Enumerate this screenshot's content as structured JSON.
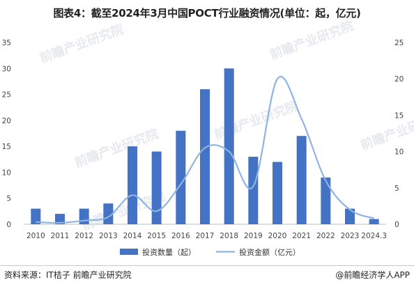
{
  "chart_data": {
    "type": "bar+line",
    "title": "图表4：截至2024年3月中国POCT行业融资情况(单位：起，亿元)",
    "categories": [
      "2010",
      "2011",
      "2012",
      "2013",
      "2014",
      "2015",
      "2016",
      "2017",
      "2018",
      "2019",
      "2020",
      "2021",
      "2022",
      "2023",
      "2024.3"
    ],
    "series": [
      {
        "name": "投资数量（起）",
        "type": "bar",
        "axis": "left",
        "color": "#4472c4",
        "values": [
          3,
          2,
          3,
          4,
          15,
          14,
          18,
          26,
          30,
          13,
          12,
          17,
          9,
          3,
          1
        ]
      },
      {
        "name": "投资金额（亿元）",
        "type": "line",
        "axis": "right",
        "color": "#8fb4e3",
        "values": [
          0.3,
          0.2,
          0.5,
          1.0,
          4.0,
          1.8,
          5.5,
          10.5,
          10.0,
          5.2,
          20.0,
          14.5,
          6.0,
          2.0,
          0.8
        ]
      }
    ],
    "y_left": {
      "min": 0,
      "max": 35,
      "ticks": [
        0,
        5,
        10,
        15,
        20,
        25,
        30,
        35
      ]
    },
    "y_right": {
      "min": 0,
      "max": 25,
      "ticks": [
        0,
        5,
        10,
        15,
        20,
        25
      ]
    },
    "legend_position": "bottom",
    "grid": false
  },
  "source": "资料来源：IT桔子 前瞻产业研究院",
  "brand": "@前瞻经济学人APP",
  "watermark": "前瞻产业研究院"
}
